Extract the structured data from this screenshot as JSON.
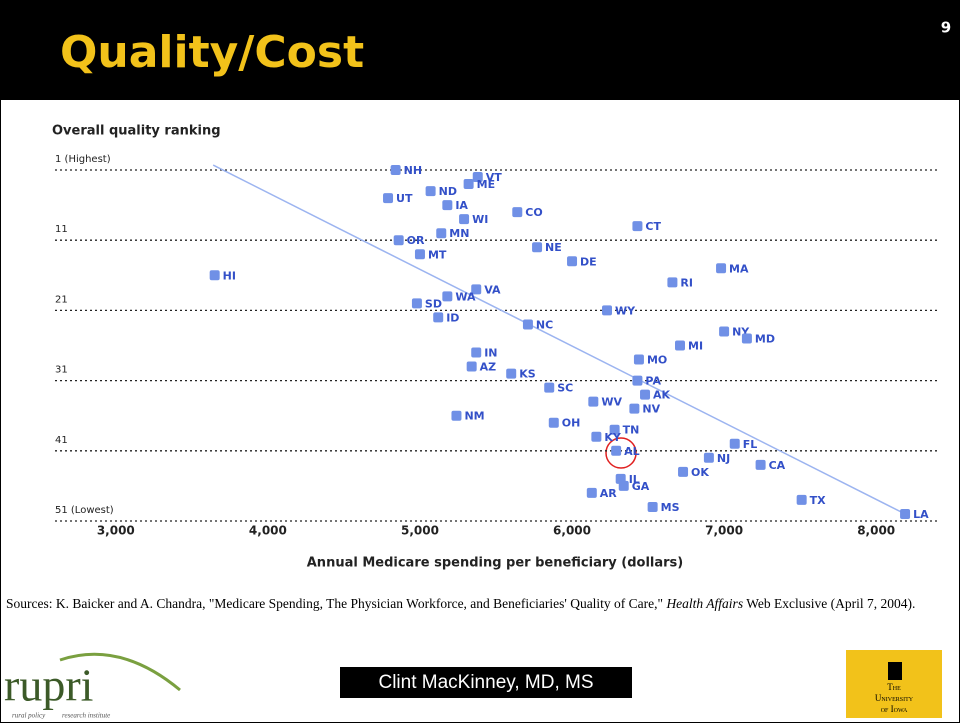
{
  "header": {
    "title": "Quality/Cost",
    "page_number": "9"
  },
  "chart_data": {
    "type": "scatter",
    "y_axis_title": "Overall quality ranking",
    "x_axis_title": "Annual Medicare spending per beneficiary (dollars)",
    "labels": [
      "NH",
      "VT",
      "ME",
      "ND",
      "UT",
      "IA",
      "CO",
      "WI",
      "CT",
      "MN",
      "OR",
      "NE",
      "MT",
      "DE",
      "MA",
      "HI",
      "RI",
      "VA",
      "WA",
      "SD",
      "WY",
      "ID",
      "NC",
      "NY",
      "MD",
      "MI",
      "IN",
      "MO",
      "AZ",
      "KS",
      "PA",
      "SC",
      "AK",
      "WV",
      "NV",
      "NM",
      "OH",
      "TN",
      "KY",
      "FL",
      "AL",
      "NJ",
      "CA",
      "OK",
      "IL",
      "GA",
      "AR",
      "TX",
      "MS",
      "LA"
    ],
    "x": [
      4840,
      5380,
      5320,
      5070,
      4790,
      5180,
      5640,
      5290,
      6430,
      5140,
      4860,
      5770,
      5000,
      6000,
      6980,
      3650,
      6660,
      5370,
      5180,
      4980,
      6230,
      5120,
      5710,
      7000,
      7150,
      6710,
      5370,
      6440,
      5340,
      5600,
      6430,
      5850,
      6480,
      6140,
      6410,
      5240,
      5880,
      6280,
      6160,
      7070,
      6290,
      6900,
      7240,
      6730,
      6320,
      6340,
      6130,
      7510,
      6530,
      8190
    ],
    "values": [
      1,
      2,
      3,
      4,
      5,
      6,
      7,
      8,
      9,
      10,
      11,
      12,
      13,
      14,
      15,
      16,
      17,
      18,
      19,
      20,
      21,
      22,
      23,
      24,
      25,
      26,
      27,
      28,
      29,
      30,
      31,
      32,
      33,
      34,
      35,
      36,
      37,
      38,
      39,
      40,
      41,
      42,
      43,
      44,
      45,
      46,
      47,
      48,
      49,
      50
    ],
    "color": "#7090e6",
    "label_color": "#3350c8",
    "trendline": {
      "x": [
        3640,
        8190
      ],
      "y": [
        0.3,
        50
      ],
      "color": "#9cb4f0"
    },
    "xlim": [
      2600,
      8400
    ],
    "ylim": [
      52,
      0
    ],
    "xticks": [
      {
        "value": 3000,
        "label": "3,000"
      },
      {
        "value": 4000,
        "label": "4,000"
      },
      {
        "value": 5000,
        "label": "5,000"
      },
      {
        "value": 6000,
        "label": "6,000"
      },
      {
        "value": 7000,
        "label": "7,000"
      },
      {
        "value": 8000,
        "label": "8,000"
      }
    ],
    "yticks": [
      {
        "value": 1,
        "label": "1 (Highest)"
      },
      11,
      21,
      31,
      41,
      {
        "value": 51,
        "label": "51 (Lowest)"
      }
    ],
    "grid": true
  },
  "source": {
    "before": "Sources: K. Baicker and A. Chandra, \"Medicare Spending, The Physician Workforce, and Beneficiaries' Quality of Care,\" ",
    "italic": "Health Affairs",
    "after": " Web Exclusive (April 7, 2004)."
  },
  "footer": {
    "logo_left": "rupri",
    "logo_left_sub1": "rural policy",
    "logo_left_sub2": "research institute",
    "presenter": "Clint MacKinney, MD, MS",
    "logo_right_1": "The",
    "logo_right_2": "University",
    "logo_right_3": "of Iowa"
  }
}
